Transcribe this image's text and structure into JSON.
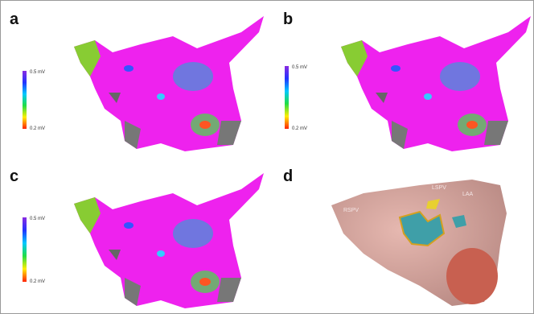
{
  "panels": [
    {
      "label": "a",
      "scale_max": "0.5 mV",
      "scale_min": "0.2 mV"
    },
    {
      "label": "b",
      "scale_max": "0.5 mV",
      "scale_min": "0.2 mV"
    },
    {
      "label": "c",
      "scale_max": "0.5 mV",
      "scale_min": "0.2 mV"
    },
    {
      "label": "d",
      "annotations": [
        "RSPV",
        "LSPV",
        "LAA"
      ]
    }
  ]
}
